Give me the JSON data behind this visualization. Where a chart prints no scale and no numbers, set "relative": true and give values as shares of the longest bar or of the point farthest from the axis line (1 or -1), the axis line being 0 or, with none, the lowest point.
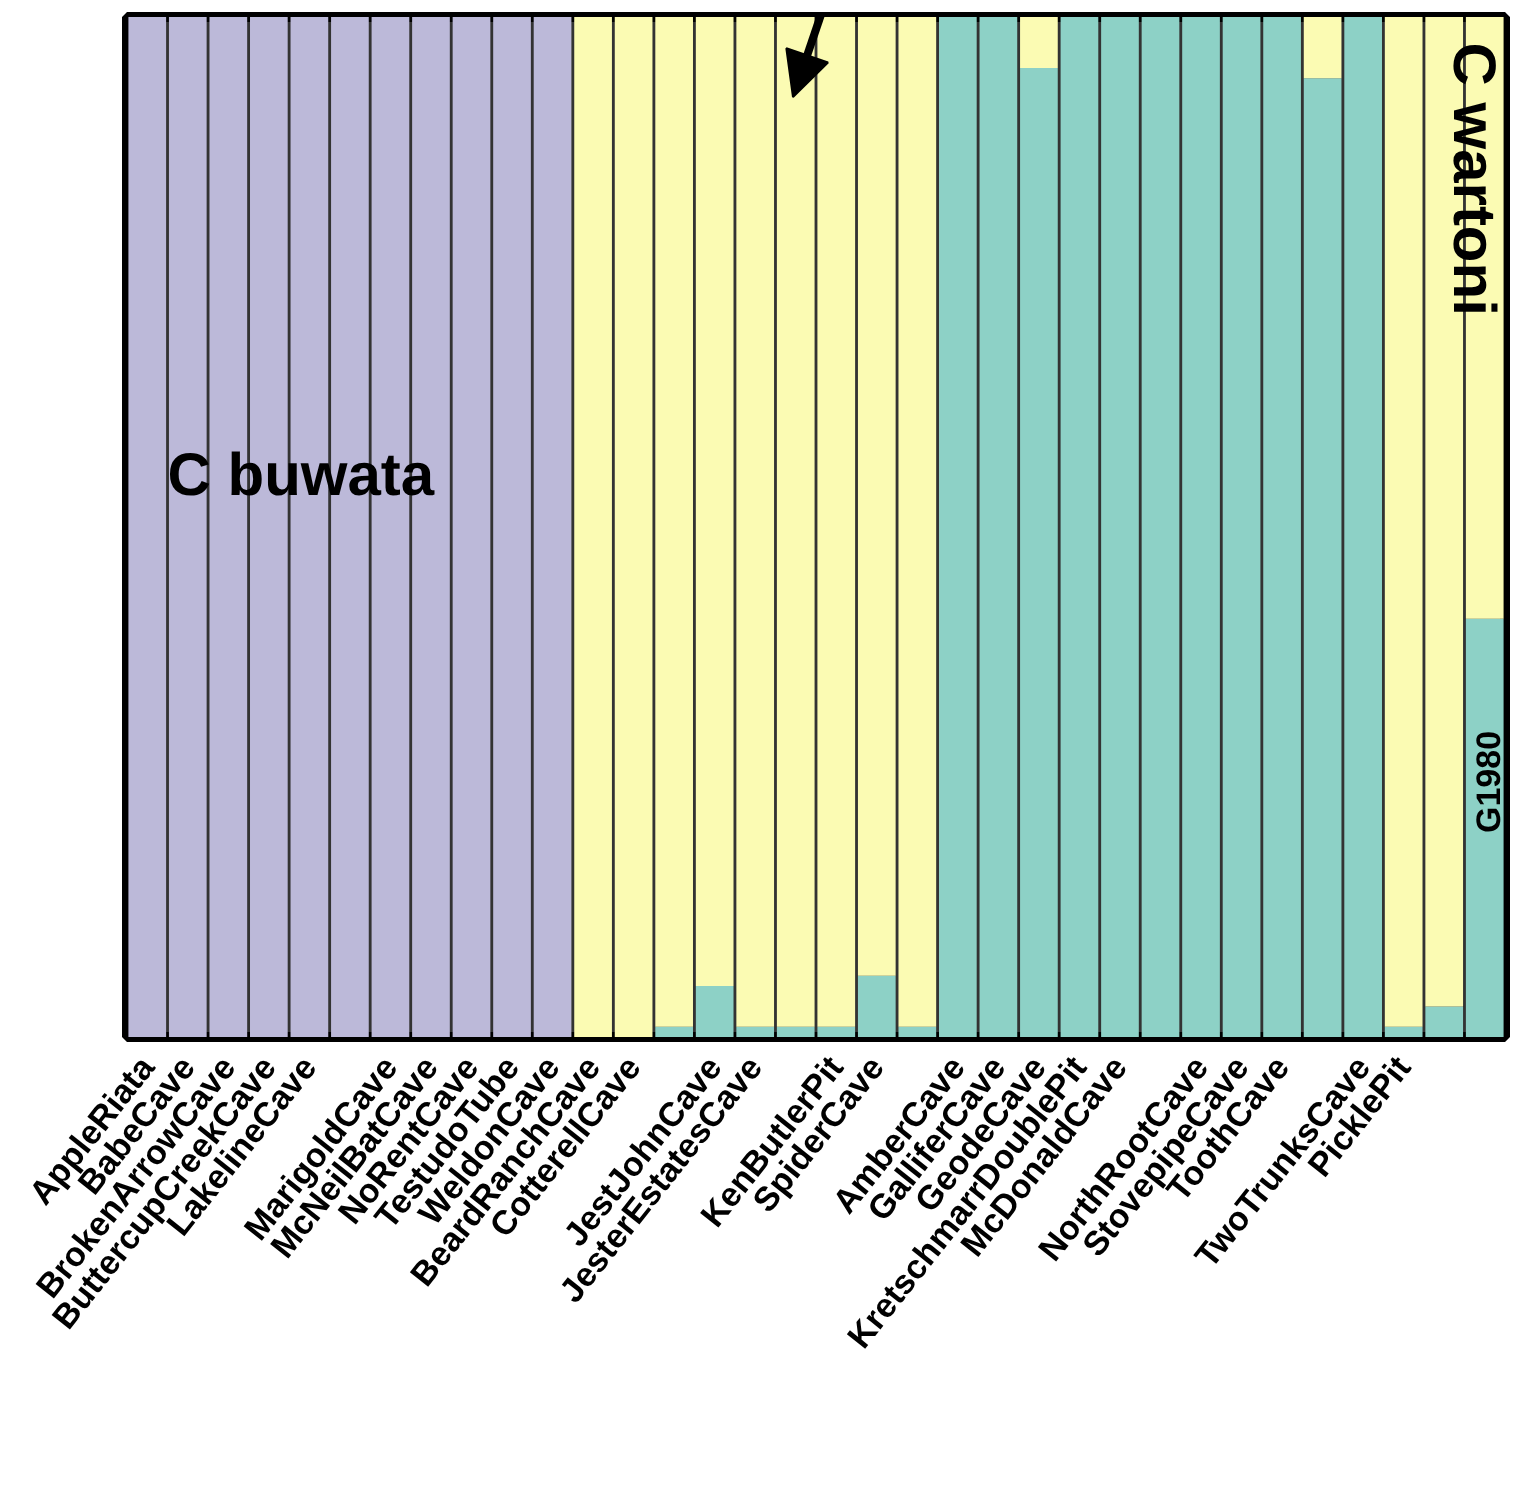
{
  "chart_data": {
    "type": "bar",
    "stacked": true,
    "relative": true,
    "categories": [
      "AppleRiata",
      "BabeCave",
      "BrokenArrowCave",
      "ButtercupCreekCave",
      "LakelineCave",
      null,
      "MarigoldCave",
      "McNeilBatCave",
      "NoRentCave",
      "TestudoTube",
      "WeldonCave",
      "BeardRanchCave",
      "CotterellCave",
      null,
      "JestJohnCave",
      "JesterEstatesCave",
      null,
      "KenButlerPit",
      "SpiderCave",
      null,
      "AmberCave",
      "GalliferCave",
      "GeodeCave",
      "KretschmarrDoublePit",
      "McDonaldCave",
      null,
      "NorthRootCave",
      "StovepipeCave",
      "ToothCave",
      null,
      "TwoTrunksCave",
      "PicklePit",
      null,
      null
    ],
    "series": [
      {
        "color": "#8dd1c6",
        "values": [
          0,
          0,
          0,
          0,
          0,
          0,
          0,
          0,
          0,
          0,
          0,
          0,
          0,
          0.01,
          0.05,
          0.01,
          0.01,
          0.01,
          0.06,
          0.01,
          1,
          1,
          0.95,
          1,
          1,
          1,
          1,
          1,
          1,
          0.94,
          1,
          0.01,
          0.03,
          0.41
        ]
      },
      {
        "color": "#fbfbb3",
        "values": [
          0,
          0,
          0,
          0,
          0,
          0,
          0,
          0,
          0,
          0,
          0,
          1,
          1,
          0.99,
          0.95,
          0.99,
          0.99,
          0.99,
          0.94,
          0.99,
          0,
          0,
          0.05,
          0,
          0,
          0,
          0,
          0,
          0,
          0.06,
          0,
          0.99,
          0.97,
          0.59
        ]
      },
      {
        "color": "#bcb9d9",
        "values": [
          1,
          1,
          1,
          1,
          1,
          1,
          1,
          1,
          1,
          1,
          1,
          0,
          0,
          0,
          0,
          0,
          0,
          0,
          0,
          0,
          0,
          0,
          0,
          0,
          0,
          0,
          0,
          0,
          0,
          0,
          0,
          0,
          0,
          0
        ]
      }
    ],
    "annotations": [
      "C buwata",
      "C wartoni",
      "G1980"
    ]
  }
}
